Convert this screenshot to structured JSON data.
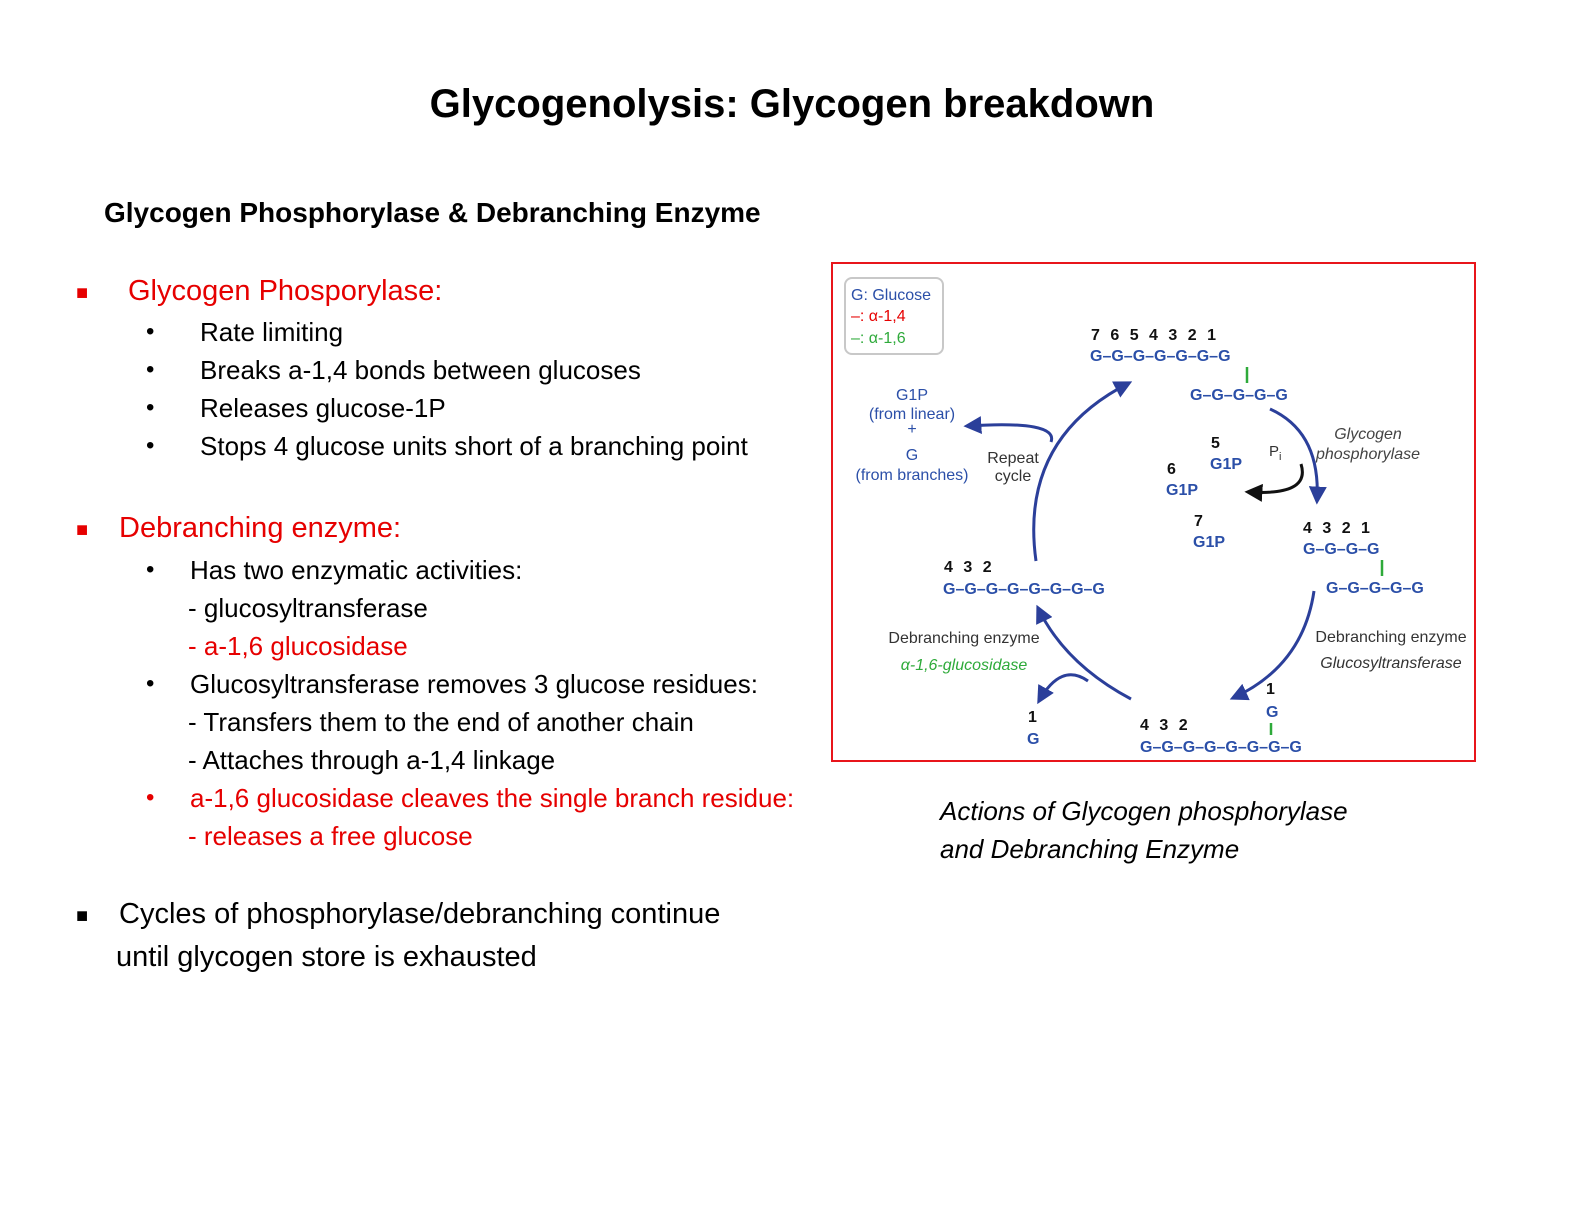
{
  "title": "Glycogenolysis: Glycogen breakdown",
  "subtitle": "Glycogen Phosphorylase & Debranching Enzyme",
  "sections": [
    {
      "heading": "Glycogen Phosporylase:",
      "items": [
        "Rate limiting",
        "Breaks a-1,4 bonds between glucoses",
        "Releases glucose-1P",
        "Stops 4 glucose units short of a branching point"
      ]
    },
    {
      "heading": "Debranching enzyme:",
      "items": [
        "Has two enzymatic activities:",
        "- glucosyltransferase",
        "- a-1,6 glucosidase",
        "Glucosyltransferase removes 3 glucose residues:",
        "- Transfers them to the end of another chain",
        "- Attaches through a-1,4 linkage",
        "a-1,6 glucosidase cleaves the single branch residue:",
        "- releases a free glucose"
      ]
    },
    {
      "heading": "Cycles of phosphorylase/debranching continue",
      "items": [
        "until glycogen store is exhausted"
      ]
    }
  ],
  "figure": {
    "caption_line1": "Actions of Glycogen phosphorylase",
    "caption_line2": "and Debranching Enzyme",
    "legend": {
      "glucose": "G: Glucose",
      "alpha14": "–: α-1,4",
      "alpha16": "–: α-1,6"
    },
    "top_numbers": "7 6 5 4 3 2 1",
    "top_chain": "G–G–G–G–G–G–G",
    "top_branch": "G–G–G–G–G",
    "right_numbers": "4 3 2 1",
    "right_chain": "G–G–G–G",
    "right_branch": "G–G–G–G–G",
    "bottom_numbers": "4 3 2",
    "bottom_chain": "G–G–G–G–G–G–G–G",
    "bottom_branch_number": "1",
    "bottom_branch_g": "G",
    "left_numbers": "4 3 2",
    "left_chain": "G–G–G–G–G–G–G–G",
    "free_number": "1",
    "free_g": "G",
    "g1p_5": "5",
    "g1p_6": "6",
    "g1p_7": "7",
    "g1p": "G1P",
    "pi": "P",
    "pi_sub": "i",
    "phosphorylase_label_1": "Glycogen",
    "phosphorylase_label_2": "phosphorylase",
    "debranch_right_1": "Debranching enzyme",
    "debranch_right_2": "Glucosyltransferase",
    "debranch_left_1": "Debranching enzyme",
    "debranch_left_2": "α-1,6-glucosidase",
    "repeat_1": "Repeat",
    "repeat_2": "cycle",
    "out_g1p": "G1P",
    "out_from_linear": "(from linear)",
    "out_plus": "+",
    "out_g": "G",
    "out_from_branches": "(from branches)",
    "colors": {
      "blue": "#2b4fa8",
      "red": "#e60000",
      "green": "#2eaa3a",
      "arrow": "#2b3f9a"
    }
  }
}
